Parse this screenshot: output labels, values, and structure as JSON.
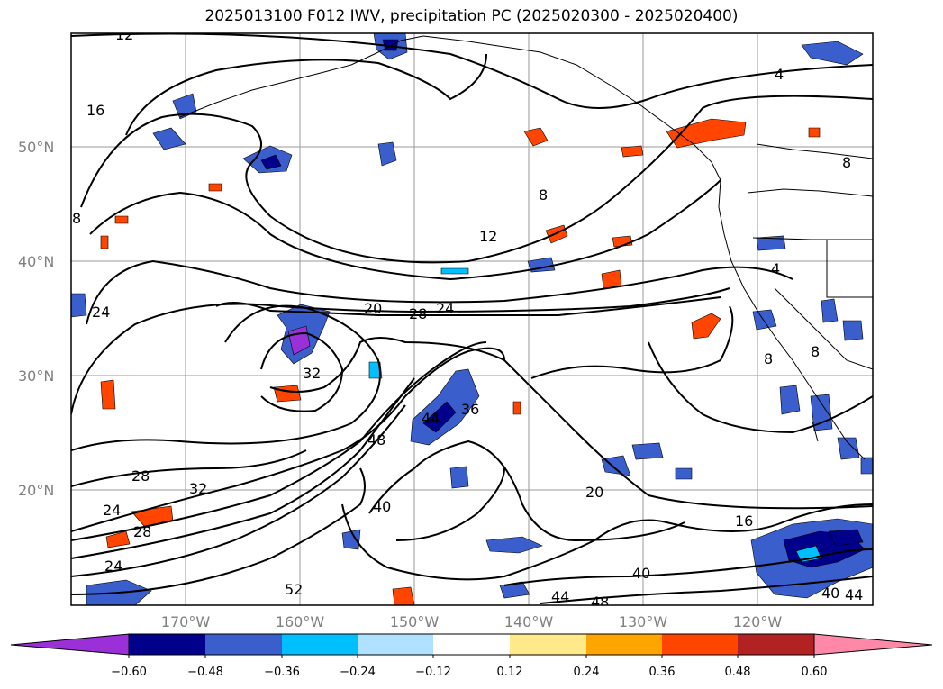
{
  "title": "2025013100 F012 IWV, precipitation PC (2025020300 - 2025020400)",
  "map": {
    "lat_labels": [
      "50°N",
      "40°N",
      "30°N",
      "20°N"
    ],
    "lon_labels": [
      "170°W",
      "160°W",
      "150°W",
      "140°W",
      "130°W",
      "120°W"
    ],
    "contour_labels": [
      "12",
      "16",
      "4",
      "8",
      "8",
      "12",
      "8",
      "24",
      "20",
      "28",
      "24",
      "32",
      "44",
      "36",
      "48",
      "28",
      "32",
      "40",
      "24",
      "28",
      "24",
      "20",
      "16",
      "40",
      "44",
      "48",
      "52",
      "40",
      "44",
      "4",
      "8",
      "8"
    ]
  },
  "colorbar": {
    "ticks": [
      "−0.60",
      "−0.48",
      "−0.36",
      "−0.24",
      "−0.12",
      "0.12",
      "0.24",
      "0.36",
      "0.48",
      "0.60"
    ],
    "colors": [
      "#9b30d9",
      "#00008b",
      "#3a5fcd",
      "#00bfff",
      "#b0e2ff",
      "#ffffff",
      "#ffe98a",
      "#ffa500",
      "#ff4500",
      "#b22222",
      "#ff88a8"
    ]
  }
}
